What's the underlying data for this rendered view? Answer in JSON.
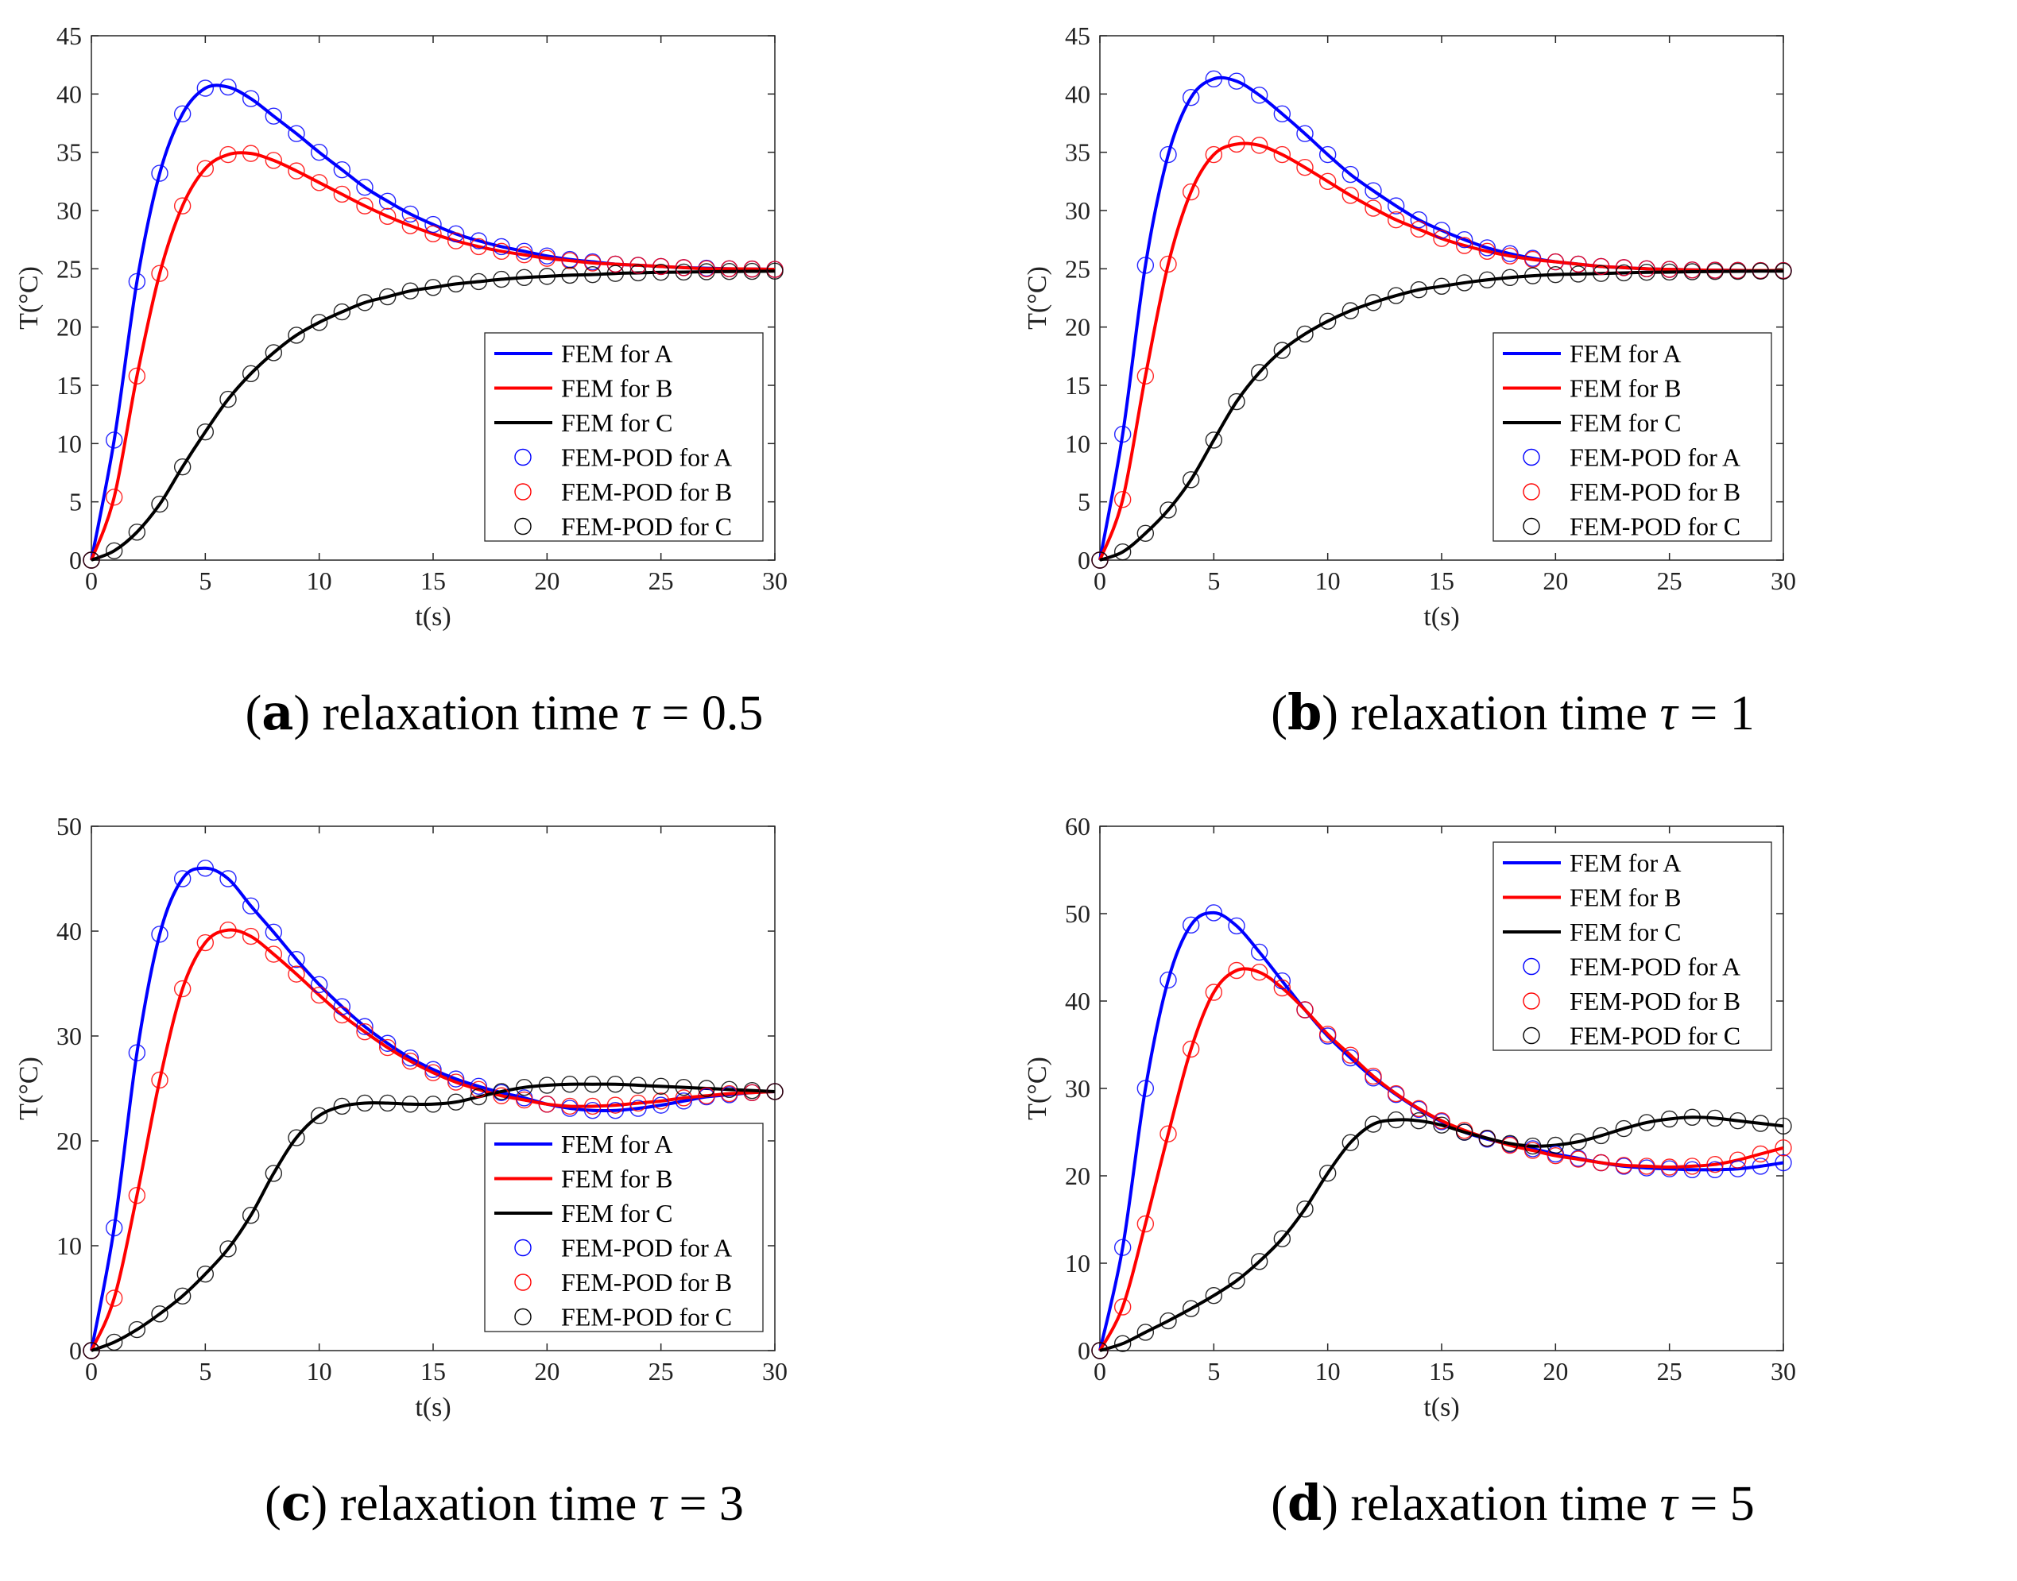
{
  "chart_data": [
    {
      "id": "a",
      "type": "line",
      "caption_label": "a",
      "caption_text": "relaxation time",
      "caption_symbol": "τ",
      "caption_value": "= 0.5",
      "xlabel": "t(s)",
      "ylabel": "T(°C)",
      "xlim": [
        0,
        30
      ],
      "ylim": [
        0,
        45
      ],
      "xticks": [
        0,
        5,
        10,
        15,
        20,
        25,
        30
      ],
      "yticks": [
        0,
        5,
        10,
        15,
        20,
        25,
        30,
        35,
        40,
        45
      ],
      "legend_position": "lower-right",
      "legend": [
        "FEM for A",
        "FEM for B",
        "FEM for C",
        "FEM-POD for A",
        "FEM-POD for B",
        "FEM-POD for C"
      ],
      "colors": {
        "A": "#0000ff",
        "B": "#ff0000",
        "C": "#000000"
      },
      "x": [
        0,
        1,
        2,
        3,
        4,
        5,
        6,
        7,
        8,
        9,
        10,
        11,
        12,
        13,
        14,
        15,
        16,
        17,
        18,
        19,
        20,
        21,
        22,
        23,
        24,
        25,
        26,
        27,
        28,
        29,
        30
      ],
      "series": [
        {
          "name": "A",
          "values": [
            0,
            10.3,
            23.9,
            33.2,
            38.3,
            40.5,
            40.6,
            39.6,
            38.1,
            36.6,
            35,
            33.5,
            32,
            30.8,
            29.7,
            28.8,
            28,
            27.4,
            26.9,
            26.5,
            26.1,
            25.8,
            25.6,
            25.4,
            25.3,
            25.2,
            25.1,
            25.05,
            25,
            24.98,
            24.95
          ]
        },
        {
          "name": "B",
          "values": [
            0,
            5.4,
            15.8,
            24.6,
            30.4,
            33.6,
            34.8,
            34.9,
            34.3,
            33.4,
            32.4,
            31.4,
            30.4,
            29.5,
            28.7,
            28,
            27.4,
            26.9,
            26.5,
            26.2,
            25.9,
            25.7,
            25.5,
            25.4,
            25.3,
            25.2,
            25.1,
            25,
            25,
            24.98,
            24.95
          ]
        },
        {
          "name": "C",
          "values": [
            0,
            0.8,
            2.4,
            4.8,
            8,
            11,
            13.8,
            16,
            17.8,
            19.3,
            20.4,
            21.3,
            22.1,
            22.6,
            23.1,
            23.4,
            23.7,
            23.9,
            24.1,
            24.25,
            24.35,
            24.45,
            24.5,
            24.6,
            24.65,
            24.7,
            24.72,
            24.75,
            24.77,
            24.78,
            24.8
          ]
        }
      ]
    },
    {
      "id": "b",
      "type": "line",
      "caption_label": "b",
      "caption_text": "relaxation time",
      "caption_symbol": "τ",
      "caption_value": "= 1",
      "xlabel": "t(s)",
      "ylabel": "T(°C)",
      "xlim": [
        0,
        30
      ],
      "ylim": [
        0,
        45
      ],
      "xticks": [
        0,
        5,
        10,
        15,
        20,
        25,
        30
      ],
      "yticks": [
        0,
        5,
        10,
        15,
        20,
        25,
        30,
        35,
        40,
        45
      ],
      "legend_position": "lower-right",
      "legend": [
        "FEM for A",
        "FEM for B",
        "FEM for C",
        "FEM-POD for A",
        "FEM-POD for B",
        "FEM-POD for C"
      ],
      "colors": {
        "A": "#0000ff",
        "B": "#ff0000",
        "C": "#000000"
      },
      "x": [
        0,
        1,
        2,
        3,
        4,
        5,
        6,
        7,
        8,
        9,
        10,
        11,
        12,
        13,
        14,
        15,
        16,
        17,
        18,
        19,
        20,
        21,
        22,
        23,
        24,
        25,
        26,
        27,
        28,
        29,
        30
      ],
      "series": [
        {
          "name": "A",
          "values": [
            0,
            10.8,
            25.3,
            34.8,
            39.7,
            41.3,
            41.1,
            39.9,
            38.3,
            36.6,
            34.8,
            33.1,
            31.7,
            30.4,
            29.2,
            28.3,
            27.5,
            26.8,
            26.3,
            25.9,
            25.6,
            25.4,
            25.2,
            25.1,
            25,
            24.95,
            24.9,
            24.88,
            24.86,
            24.85,
            24.85
          ]
        },
        {
          "name": "B",
          "values": [
            0,
            5.2,
            15.8,
            25.4,
            31.6,
            34.8,
            35.7,
            35.6,
            34.8,
            33.7,
            32.5,
            31.3,
            30.2,
            29.2,
            28.4,
            27.6,
            27,
            26.5,
            26.1,
            25.8,
            25.6,
            25.4,
            25.2,
            25.1,
            25,
            24.95,
            24.9,
            24.88,
            24.86,
            24.85,
            24.85
          ]
        },
        {
          "name": "C",
          "values": [
            0,
            0.7,
            2.3,
            4.3,
            6.9,
            10.3,
            13.6,
            16.1,
            18,
            19.4,
            20.5,
            21.4,
            22.1,
            22.7,
            23.2,
            23.5,
            23.8,
            24.05,
            24.25,
            24.4,
            24.5,
            24.55,
            24.6,
            24.65,
            24.7,
            24.72,
            24.75,
            24.77,
            24.78,
            24.8,
            24.8
          ]
        }
      ]
    },
    {
      "id": "c",
      "type": "line",
      "caption_label": "c",
      "caption_text": "relaxation time",
      "caption_symbol": "τ",
      "caption_value": "= 3",
      "xlabel": "t(s)",
      "ylabel": "T(°C)",
      "xlim": [
        0,
        30
      ],
      "ylim": [
        0,
        50
      ],
      "xticks": [
        0,
        5,
        10,
        15,
        20,
        25,
        30
      ],
      "yticks": [
        0,
        10,
        20,
        30,
        40,
        50
      ],
      "legend_position": "lower-right",
      "legend": [
        "FEM for A",
        "FEM for B",
        "FEM for C",
        "FEM-POD for A",
        "FEM-POD for B",
        "FEM-POD for C"
      ],
      "colors": {
        "A": "#0000ff",
        "B": "#ff0000",
        "C": "#000000"
      },
      "x": [
        0,
        1,
        2,
        3,
        4,
        5,
        6,
        7,
        8,
        9,
        10,
        11,
        12,
        13,
        14,
        15,
        16,
        17,
        18,
        19,
        20,
        21,
        22,
        23,
        24,
        25,
        26,
        27,
        28,
        29,
        30
      ],
      "series": [
        {
          "name": "A",
          "values": [
            0,
            11.7,
            28.4,
            39.7,
            45,
            46,
            45,
            42.4,
            39.9,
            37.3,
            34.9,
            32.8,
            30.9,
            29.3,
            27.9,
            26.8,
            25.9,
            25.2,
            24.6,
            24.1,
            23.5,
            23.1,
            22.9,
            22.9,
            23.1,
            23.4,
            23.8,
            24.2,
            24.4,
            24.6,
            24.7
          ]
        },
        {
          "name": "B",
          "values": [
            0,
            5,
            14.8,
            25.8,
            34.5,
            38.9,
            40.1,
            39.5,
            37.8,
            35.9,
            33.9,
            32,
            30.4,
            28.9,
            27.6,
            26.5,
            25.6,
            24.9,
            24.3,
            23.9,
            23.5,
            23.3,
            23.3,
            23.4,
            23.6,
            23.8,
            24.1,
            24.3,
            24.5,
            24.6,
            24.7
          ]
        },
        {
          "name": "C",
          "values": [
            0,
            0.8,
            2,
            3.5,
            5.2,
            7.3,
            9.7,
            12.9,
            16.9,
            20.3,
            22.4,
            23.3,
            23.6,
            23.6,
            23.5,
            23.5,
            23.7,
            24.2,
            24.7,
            25.1,
            25.3,
            25.4,
            25.4,
            25.4,
            25.3,
            25.2,
            25.1,
            25,
            24.9,
            24.8,
            24.7
          ]
        }
      ]
    },
    {
      "id": "d",
      "type": "line",
      "caption_label": "d",
      "caption_text": "relaxation time",
      "caption_symbol": "τ",
      "caption_value": "= 5",
      "xlabel": "t(s)",
      "ylabel": "T(°C)",
      "xlim": [
        0,
        30
      ],
      "ylim": [
        0,
        60
      ],
      "xticks": [
        0,
        5,
        10,
        15,
        20,
        25,
        30
      ],
      "yticks": [
        0,
        10,
        20,
        30,
        40,
        50,
        60
      ],
      "legend_position": "top-right",
      "legend": [
        "FEM for A",
        "FEM for B",
        "FEM for C",
        "FEM-POD for A",
        "FEM-POD for B",
        "FEM-POD for C"
      ],
      "colors": {
        "A": "#0000ff",
        "B": "#ff0000",
        "C": "#000000"
      },
      "x": [
        0,
        1,
        2,
        3,
        4,
        5,
        6,
        7,
        8,
        9,
        10,
        11,
        12,
        13,
        14,
        15,
        16,
        17,
        18,
        19,
        20,
        21,
        22,
        23,
        24,
        25,
        26,
        27,
        28,
        29,
        30
      ],
      "series": [
        {
          "name": "A",
          "values": [
            0,
            11.8,
            30,
            42.4,
            48.7,
            50.1,
            48.6,
            45.6,
            42.3,
            39,
            36,
            33.5,
            31.2,
            29.3,
            27.6,
            26.2,
            25,
            24.2,
            23.6,
            23.1,
            22.5,
            22,
            21.5,
            21.1,
            20.9,
            20.8,
            20.7,
            20.7,
            20.8,
            21.1,
            21.5
          ]
        },
        {
          "name": "B",
          "values": [
            0,
            5,
            14.5,
            24.8,
            34.5,
            41,
            43.5,
            43.3,
            41.5,
            39,
            36.2,
            33.8,
            31.4,
            29.4,
            27.7,
            26.3,
            25.2,
            24.3,
            23.5,
            22.9,
            22.3,
            21.9,
            21.5,
            21.2,
            21.1,
            21,
            21.1,
            21.3,
            21.8,
            22.5,
            23.2
          ]
        },
        {
          "name": "C",
          "values": [
            0,
            0.8,
            2.1,
            3.4,
            4.8,
            6.3,
            8,
            10.2,
            12.8,
            16.2,
            20.3,
            23.8,
            25.9,
            26.4,
            26.3,
            25.8,
            25,
            24.3,
            23.7,
            23.4,
            23.5,
            23.9,
            24.6,
            25.4,
            26.1,
            26.5,
            26.7,
            26.6,
            26.3,
            26,
            25.7
          ]
        }
      ]
    }
  ]
}
